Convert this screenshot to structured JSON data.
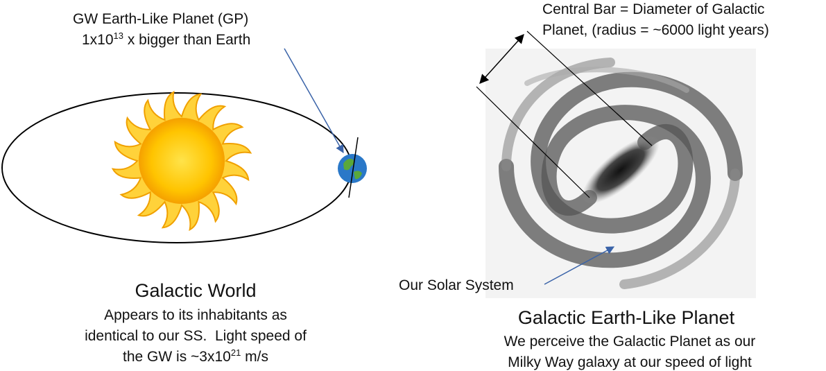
{
  "left": {
    "callout": {
      "line1": "GW Earth-Like Planet (GP)",
      "line2": [
        "1x10",
        "13",
        " x bigger than Earth"
      ]
    },
    "title": "Galactic World",
    "caption": [
      "Appears to its inhabitants as",
      "identical to our SS.  Light speed of",
      [
        "the GW is ~3x10",
        "21",
        " m/s"
      ]
    ]
  },
  "right": {
    "callout": [
      "Central Bar = Diameter of Galactic",
      "Planet, (radius = ~6000 light years)"
    ],
    "marker": "Our Solar System",
    "title": "Galactic Earth-Like Planet",
    "caption": [
      "We perceive the Galactic Planet as our",
      "Milky Way galaxy at our speed of light"
    ]
  }
}
